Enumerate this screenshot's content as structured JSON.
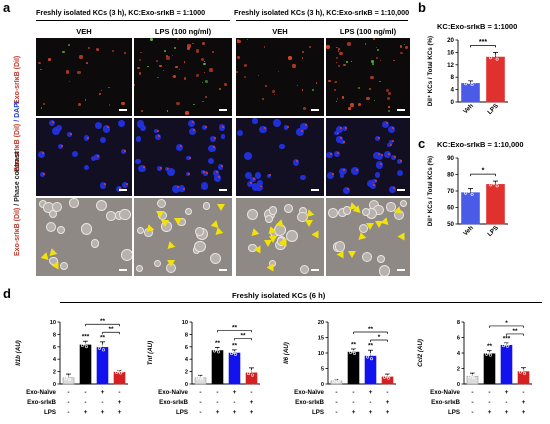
{
  "panel_labels": [
    "a",
    "b",
    "c",
    "d"
  ],
  "panel_a": {
    "group_headers": [
      "Freshly isolated KCs (3 h), KC:Exo-srIκB = 1:1000",
      "Freshly isolated KCs (3 h), KC:Exo-srIκB = 1:10,000"
    ],
    "column_labels": [
      "VEH",
      "LPS (100 ng/ml)",
      "VEH",
      "LPS (100 ng/ml)"
    ],
    "row_labels": [
      {
        "part1": "Exo-srIκB (DiI)",
        "part2": ""
      },
      {
        "part1": "Exo-srIκB (DiI)",
        "part2": "/ DAPI"
      },
      {
        "part1": "Exo-srIκB (DiI)",
        "part2": "/ Phase contrast"
      }
    ]
  },
  "chart_data": [
    {
      "id": "b",
      "type": "bar",
      "title": "KC:Exo-srIκB = 1:1000",
      "ylabel": "DiI⁺ KCs / Total KCs (%)",
      "categories": [
        "Veh",
        "LPS"
      ],
      "values": [
        6,
        14.5
      ],
      "errors": [
        0.8,
        1.5
      ],
      "ylim": [
        0,
        20
      ],
      "yticks": [
        0,
        4,
        8,
        12,
        16,
        20
      ],
      "significance": "***",
      "colors": [
        "#4a5be8",
        "#e0312f"
      ]
    },
    {
      "id": "c",
      "type": "bar",
      "title": "KC:Exo-srIκB = 1:10,000",
      "ylabel": "DiI⁺ KCs / Total KCs (%)",
      "categories": [
        "Veh",
        "LPS"
      ],
      "values": [
        69,
        74
      ],
      "errors": [
        2.5,
        2
      ],
      "ylim": [
        50,
        90
      ],
      "yticks": [
        50,
        60,
        70,
        80,
        90
      ],
      "significance": "*",
      "colors": [
        "#4a5be8",
        "#e0312f"
      ]
    },
    {
      "id": "d1",
      "type": "bar",
      "ylabel": "Il1b (AU)",
      "values": [
        1,
        6.3,
        5.9,
        1.9
      ],
      "errors": [
        0.6,
        0.6,
        0.9,
        0.3
      ],
      "ylim": [
        0,
        10
      ],
      "yticks": [
        0,
        2,
        4,
        6,
        8,
        10
      ],
      "bar_marks": [
        "",
        "***",
        "**",
        ""
      ],
      "brackets": [
        {
          "from": 1,
          "to": 3,
          "label": "**"
        },
        {
          "from": 2,
          "to": 3,
          "label": "**"
        }
      ],
      "colors": [
        "#dcdcdc",
        "#000000",
        "#1212ee",
        "#d42020"
      ]
    },
    {
      "id": "d2",
      "type": "bar",
      "ylabel": "Tnf (AU)",
      "values": [
        1,
        5.4,
        5.0,
        1.8
      ],
      "errors": [
        0.4,
        0.5,
        0.5,
        0.8
      ],
      "ylim": [
        0,
        10
      ],
      "yticks": [
        0,
        2,
        4,
        6,
        8,
        10
      ],
      "bar_marks": [
        "",
        "**",
        "**",
        ""
      ],
      "brackets": [
        {
          "from": 1,
          "to": 3,
          "label": "**"
        },
        {
          "from": 2,
          "to": 3,
          "label": "**"
        }
      ],
      "colors": [
        "#dcdcdc",
        "#000000",
        "#1212ee",
        "#d42020"
      ]
    },
    {
      "id": "d3",
      "type": "bar",
      "ylabel": "Il6 (AU)",
      "values": [
        1,
        10.3,
        9.0,
        2.3
      ],
      "errors": [
        0.4,
        1.0,
        1.9,
        0.9
      ],
      "ylim": [
        0,
        20
      ],
      "yticks": [
        0,
        5,
        10,
        15,
        20
      ],
      "bar_marks": [
        "",
        "**",
        "**",
        ""
      ],
      "brackets": [
        {
          "from": 1,
          "to": 3,
          "label": "**"
        },
        {
          "from": 2,
          "to": 3,
          "label": "*"
        }
      ],
      "colors": [
        "#dcdcdc",
        "#000000",
        "#1212ee",
        "#d42020"
      ]
    },
    {
      "id": "d4",
      "type": "bar",
      "ylabel": "Ccl2 (AU)",
      "values": [
        1,
        3.9,
        5.0,
        1.6
      ],
      "errors": [
        0.4,
        0.4,
        0.3,
        0.5
      ],
      "ylim": [
        0,
        8
      ],
      "yticks": [
        0,
        2,
        4,
        6,
        8
      ],
      "bar_marks": [
        "",
        "**",
        "***",
        ""
      ],
      "brackets": [
        {
          "from": 1,
          "to": 3,
          "label": "*"
        },
        {
          "from": 2,
          "to": 3,
          "label": "**"
        }
      ],
      "colors": [
        "#dcdcdc",
        "#000000",
        "#1212ee",
        "#d42020"
      ]
    }
  ],
  "panel_d": {
    "header": "Freshly isolated KCs (6 h)",
    "condition_rows": [
      {
        "label": "Exo-Naïve",
        "marks": [
          "-",
          "-",
          "+",
          "-"
        ]
      },
      {
        "label": "Exo-srIκB",
        "marks": [
          "-",
          "-",
          "-",
          "+"
        ]
      },
      {
        "label": "LPS",
        "marks": [
          "-",
          "+",
          "+",
          "+"
        ]
      }
    ]
  }
}
